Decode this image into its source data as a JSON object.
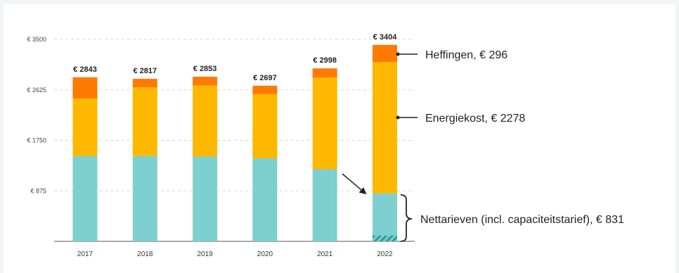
{
  "colors": {
    "nettarieven": "#7ecfcf",
    "energiekost": "#ffb800",
    "heffingen": "#ff7a00",
    "grid": "#d9d9d9",
    "hatch": "#2f9a9a"
  },
  "chart_data": {
    "type": "bar",
    "stacked": true,
    "categories": [
      "2017",
      "2018",
      "2019",
      "2020",
      "2021",
      "2022"
    ],
    "series": [
      {
        "name": "Nettarieven (incl. capaciteitstarief), € 831",
        "key": "nettarieven",
        "values": [
          1480,
          1480,
          1470,
          1440,
          1250,
          831
        ]
      },
      {
        "name": "Energiekost, € 2278",
        "key": "energiekost",
        "values": [
          995,
          1190,
          1230,
          1110,
          1590,
          2278
        ]
      },
      {
        "name": "Heffingen, € 296",
        "key": "heffingen",
        "values": [
          368,
          147,
          153,
          147,
          158,
          296
        ]
      }
    ],
    "totals": [
      "€ 2843",
      "€ 2817",
      "€ 2853",
      "€ 2697",
      "€ 2998",
      "€ 3404"
    ],
    "yticks": [
      {
        "value": 875,
        "label": "€ 875"
      },
      {
        "value": 1750,
        "label": "€ 1750"
      },
      {
        "value": 2625,
        "label": "€ 2625"
      },
      {
        "value": 3500,
        "label": "€ 3500"
      }
    ],
    "ylim": [
      0,
      3500
    ],
    "grid": true,
    "hatched_segment": {
      "category": "2022",
      "series": "nettarieven",
      "value": 100
    }
  }
}
